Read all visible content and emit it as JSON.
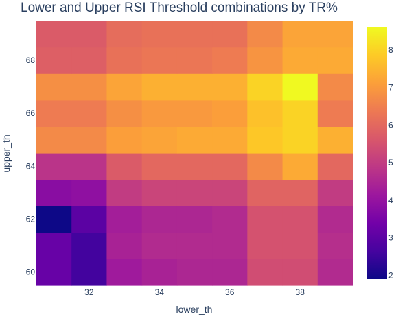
{
  "chart_data": {
    "type": "heatmap",
    "title": "Lower and Upper RSI Threshold combinations by TR%",
    "xlabel": "lower_th",
    "ylabel": "upper_th",
    "x": [
      31,
      32,
      33,
      34,
      35,
      36,
      37,
      38,
      39
    ],
    "y": [
      60,
      61,
      62,
      63,
      64,
      65,
      66,
      67,
      68,
      69
    ],
    "xticks": [
      32,
      34,
      36,
      38
    ],
    "yticks": [
      60,
      62,
      64,
      66,
      68
    ],
    "z": [
      [
        3.2,
        2.6,
        4.2,
        4.4,
        4.5,
        4.5,
        5.4,
        5.4,
        4.6
      ],
      [
        3.2,
        2.6,
        4.4,
        4.6,
        4.6,
        4.6,
        5.5,
        5.5,
        4.7
      ],
      [
        1.9,
        3.0,
        4.3,
        4.5,
        4.5,
        4.6,
        5.5,
        5.5,
        4.6
      ],
      [
        3.8,
        3.9,
        5.0,
        5.2,
        5.2,
        5.2,
        5.9,
        5.9,
        5.0
      ],
      [
        4.8,
        4.8,
        5.7,
        6.0,
        6.0,
        6.0,
        6.7,
        7.3,
        6.0
      ],
      [
        6.7,
        6.7,
        7.1,
        7.2,
        7.3,
        7.3,
        7.8,
        8.0,
        7.4
      ],
      [
        6.4,
        6.4,
        6.8,
        7.0,
        7.0,
        7.1,
        7.7,
        8.0,
        6.4
      ],
      [
        6.8,
        6.8,
        7.2,
        7.4,
        7.4,
        7.4,
        8.0,
        8.6,
        6.7
      ],
      [
        5.8,
        5.8,
        6.2,
        6.3,
        6.3,
        6.4,
        6.9,
        7.3,
        7.3
      ],
      [
        5.7,
        5.7,
        6.1,
        6.2,
        6.2,
        6.2,
        6.7,
        7.2,
        7.2
      ]
    ],
    "zmin": 1.9,
    "zmax": 8.6,
    "colorbar_ticks": [
      2,
      3,
      4,
      5,
      6,
      7,
      8
    ],
    "colorscale": [
      "#0d0887",
      "#46039f",
      "#7201a8",
      "#9c179e",
      "#bd3786",
      "#d8576b",
      "#ed7953",
      "#fb9f3a",
      "#fdca26",
      "#f0f921"
    ],
    "grid": false,
    "legend": "colorbar-right"
  }
}
